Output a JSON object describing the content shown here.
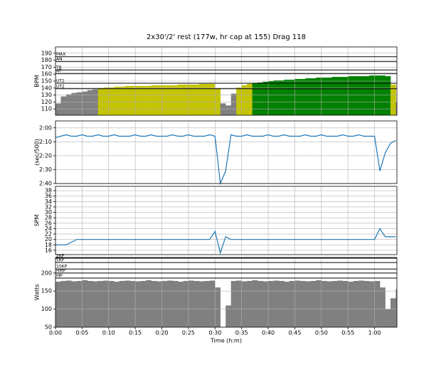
{
  "chart_data": [
    {
      "type": "area",
      "title": "2x30'/2' rest (177w, hr cap at 155) Drag 118",
      "ylabel": "BPM",
      "ylim": [
        101,
        199
      ],
      "yticks": [
        110,
        120,
        130,
        140,
        150,
        160,
        170,
        180,
        190
      ],
      "grid": true,
      "colors": [
        "#808080",
        "#c4c400",
        "#008000"
      ],
      "zones": [
        {
          "label": "MAX",
          "value": 185
        },
        {
          "label": "AN",
          "value": 178
        },
        {
          "label": "TR",
          "value": 166
        },
        {
          "label": "AT",
          "value": 161
        },
        {
          "label": "UT1",
          "value": 147
        },
        {
          "label": "UT2",
          "value": 139
        }
      ],
      "values": [
        118,
        128,
        131,
        133,
        134,
        135,
        137,
        138,
        140,
        141,
        141,
        142,
        142,
        143,
        143,
        143,
        143,
        143,
        144,
        144,
        144,
        144,
        144,
        145,
        145,
        145,
        145,
        146,
        146,
        146,
        140,
        118,
        115,
        132,
        141,
        144,
        146,
        147,
        148,
        149,
        150,
        151,
        151,
        152,
        152,
        153,
        153,
        154,
        154,
        155,
        155,
        155,
        156,
        156,
        156,
        157,
        157,
        157,
        157,
        158,
        158,
        158,
        157,
        145,
        120
      ]
    },
    {
      "type": "line",
      "ylabel": "(sec/500)",
      "color": "#1f77b4",
      "ylim": [
        115,
        160
      ],
      "y_inverted": true,
      "grid": true,
      "yticks": [
        {
          "value": 120,
          "label": "2:00"
        },
        {
          "value": 130,
          "label": "2:10"
        },
        {
          "value": 140,
          "label": "2:20"
        },
        {
          "value": 150,
          "label": "2:30"
        },
        {
          "value": 160,
          "label": "2:40"
        }
      ],
      "values": [
        127,
        126,
        125,
        126,
        126,
        125,
        126,
        126,
        125,
        126,
        126,
        125,
        126,
        126,
        126,
        125,
        126,
        126,
        125,
        126,
        126,
        126,
        125,
        126,
        126,
        125,
        126,
        126,
        126,
        125,
        126,
        160,
        151,
        125,
        126,
        126,
        125,
        126,
        126,
        126,
        125,
        126,
        126,
        125,
        126,
        126,
        126,
        125,
        126,
        126,
        125,
        126,
        126,
        126,
        125,
        126,
        126,
        125,
        126,
        126,
        126,
        151,
        138,
        131,
        129
      ]
    },
    {
      "type": "line",
      "ylabel": "SPM",
      "color": "#1f77b4",
      "ylim": [
        14.4,
        39.6
      ],
      "grid": true,
      "yticks": [
        16,
        18,
        20,
        22,
        24,
        26,
        28,
        30,
        32,
        34,
        36,
        38
      ],
      "values": [
        18,
        18,
        18,
        19,
        20,
        20,
        20,
        20,
        20,
        20,
        20,
        20,
        20,
        20,
        20,
        20,
        20,
        20,
        20,
        20,
        20,
        20,
        20,
        20,
        20,
        20,
        20,
        20,
        20,
        20,
        23,
        15,
        21,
        20,
        20,
        20,
        20,
        20,
        20,
        20,
        20,
        20,
        20,
        20,
        20,
        20,
        20,
        20,
        20,
        20,
        20,
        20,
        20,
        20,
        20,
        20,
        20,
        20,
        20,
        20,
        20,
        24,
        21,
        21,
        21
      ]
    },
    {
      "type": "area",
      "ylabel": "Watts",
      "ylim": [
        50,
        243
      ],
      "yticks": [
        50,
        100,
        150,
        200
      ],
      "grid": true,
      "colors": [
        "#808080"
      ],
      "zones": [
        {
          "label": "2KP",
          "value": 241
        },
        {
          "label": "5KP",
          "value": 229
        },
        {
          "label": "10KP",
          "value": 211
        },
        {
          "label": "HMP",
          "value": 200
        },
        {
          "label": "MP",
          "value": 186
        }
      ],
      "xlabel": "Time (h:m)",
      "xlim": [
        0,
        3852
      ],
      "xticks": [
        {
          "value": 0,
          "label": "0:00"
        },
        {
          "value": 300,
          "label": "0:05"
        },
        {
          "value": 600,
          "label": "0:10"
        },
        {
          "value": 900,
          "label": "0:15"
        },
        {
          "value": 1200,
          "label": "0:20"
        },
        {
          "value": 1500,
          "label": "0:25"
        },
        {
          "value": 1800,
          "label": "0:30"
        },
        {
          "value": 2100,
          "label": "0:35"
        },
        {
          "value": 2400,
          "label": "0:40"
        },
        {
          "value": 2700,
          "label": "0:45"
        },
        {
          "value": 3000,
          "label": "0:50"
        },
        {
          "value": 3300,
          "label": "0:55"
        },
        {
          "value": 3600,
          "label": "1:00"
        }
      ],
      "x": [
        0,
        60,
        120,
        180,
        240,
        300,
        360,
        420,
        480,
        540,
        600,
        660,
        720,
        780,
        840,
        900,
        960,
        1020,
        1080,
        1140,
        1200,
        1260,
        1320,
        1380,
        1440,
        1500,
        1560,
        1620,
        1680,
        1740,
        1800,
        1860,
        1920,
        1980,
        2040,
        2100,
        2160,
        2220,
        2280,
        2340,
        2400,
        2460,
        2520,
        2580,
        2640,
        2700,
        2760,
        2820,
        2880,
        2940,
        3000,
        3060,
        3120,
        3180,
        3240,
        3300,
        3360,
        3420,
        3480,
        3540,
        3600,
        3660,
        3720,
        3780,
        3840
      ],
      "values": [
        176,
        178,
        179,
        177,
        178,
        180,
        178,
        177,
        178,
        179,
        178,
        176,
        178,
        179,
        178,
        177,
        178,
        180,
        178,
        177,
        178,
        179,
        178,
        176,
        178,
        179,
        178,
        177,
        178,
        179,
        160,
        50,
        110,
        178,
        179,
        177,
        178,
        180,
        178,
        177,
        178,
        179,
        178,
        176,
        178,
        179,
        178,
        177,
        178,
        180,
        178,
        177,
        178,
        179,
        178,
        176,
        178,
        179,
        178,
        177,
        178,
        160,
        100,
        130,
        155
      ]
    }
  ]
}
